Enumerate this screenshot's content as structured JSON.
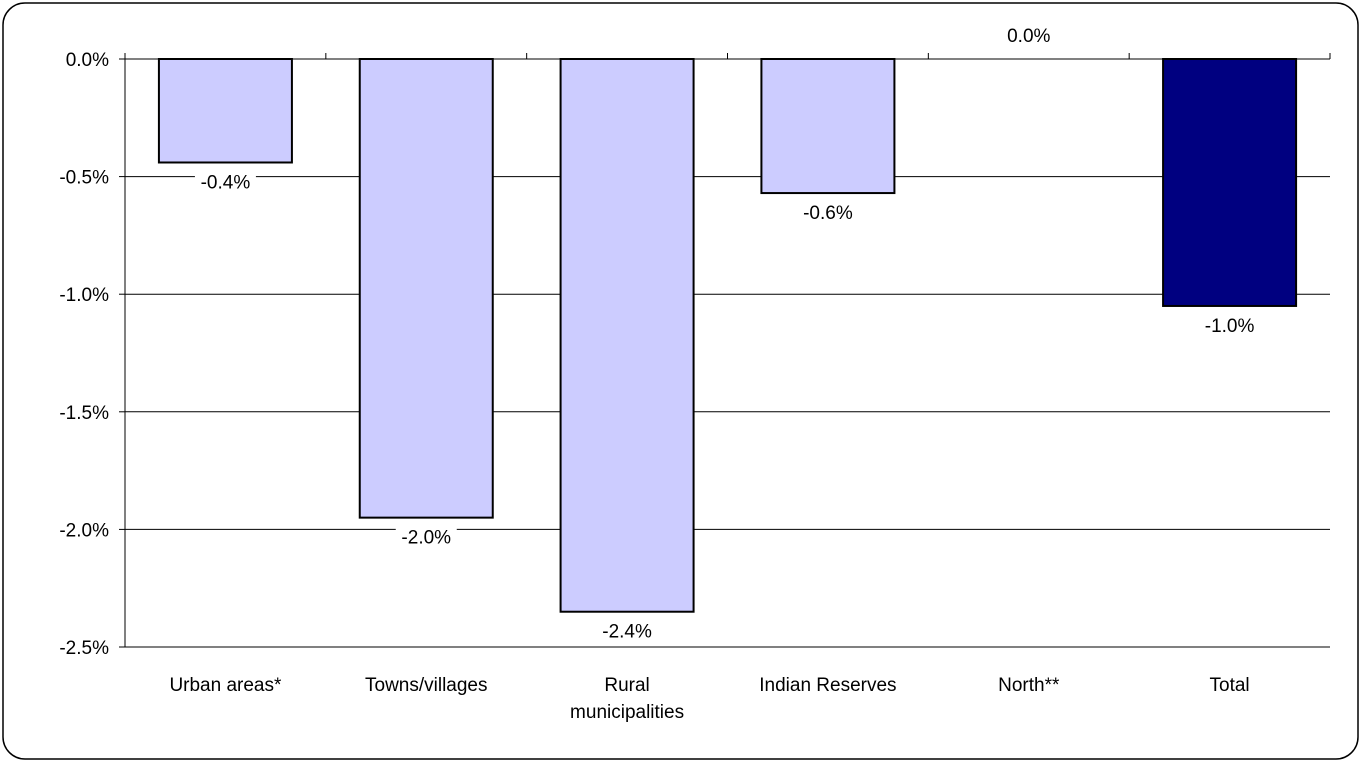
{
  "chart_data": {
    "type": "bar",
    "title": "",
    "xlabel": "",
    "ylabel": "",
    "categories": [
      [
        "Urban areas*"
      ],
      [
        "Towns/villages"
      ],
      [
        "Rural",
        "municipalities"
      ],
      [
        "Indian Reserves"
      ],
      [
        "North**"
      ],
      [
        "Total"
      ]
    ],
    "values": [
      -0.44,
      -1.95,
      -2.35,
      -0.57,
      0.0,
      -1.05
    ],
    "data_labels": [
      "-0.4%",
      "-2.0%",
      "-2.4%",
      "-0.6%",
      "0.0%",
      "-1.0%"
    ],
    "highlight_index": 5,
    "ylim": [
      -2.5,
      0.0
    ],
    "yticks": [
      0.0,
      -0.5,
      -1.0,
      -1.5,
      -2.0,
      -2.5
    ],
    "ytick_labels": [
      "0.0%",
      "-0.5%",
      "-1.0%",
      "-1.5%",
      "-2.0%",
      "-2.5%"
    ],
    "grid": true,
    "legend": "none",
    "colors": {
      "bar": "#CCCCFF",
      "highlight": "#000080",
      "bar_stroke": "#000000",
      "grid": "#000000",
      "frame": "#000000"
    }
  }
}
